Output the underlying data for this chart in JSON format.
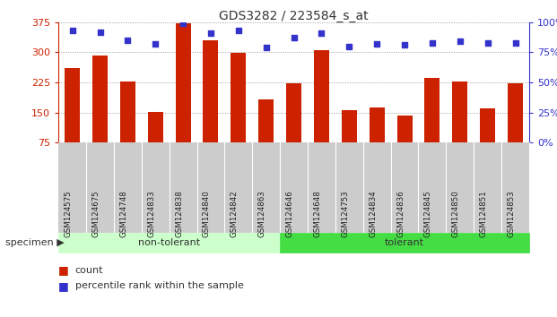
{
  "title": "GDS3282 / 223584_s_at",
  "categories": [
    "GSM124575",
    "GSM124675",
    "GSM124748",
    "GSM124833",
    "GSM124838",
    "GSM124840",
    "GSM124842",
    "GSM124863",
    "GSM124646",
    "GSM124648",
    "GSM124753",
    "GSM124834",
    "GSM124836",
    "GSM124845",
    "GSM124850",
    "GSM124851",
    "GSM124853"
  ],
  "bar_values": [
    260,
    292,
    228,
    152,
    372,
    330,
    298,
    182,
    222,
    305,
    157,
    162,
    143,
    237,
    228,
    160,
    222
  ],
  "dot_values": [
    93,
    92,
    85,
    82,
    99,
    91,
    93,
    79,
    87,
    91,
    80,
    82,
    81,
    83,
    84,
    83,
    83
  ],
  "bar_color": "#cc2200",
  "dot_color": "#3333cc",
  "ylim_left": [
    75,
    375
  ],
  "ylim_right": [
    0,
    100
  ],
  "yticks_left": [
    75,
    150,
    225,
    300,
    375
  ],
  "yticks_right": [
    0,
    25,
    50,
    75,
    100
  ],
  "non_tolerant_count": 8,
  "non_tolerant_label": "non-tolerant",
  "tolerant_label": "tolerant",
  "specimen_label": "specimen",
  "legend_bar": "count",
  "legend_dot": "percentile rank within the sample",
  "non_tolerant_color": "#ccffcc",
  "tolerant_color": "#44dd44",
  "grid_color": "#999999",
  "title_color": "#333333",
  "left_tick_color": "#cc2200",
  "right_tick_color": "#3333cc",
  "xticklabel_bg": "#cccccc"
}
